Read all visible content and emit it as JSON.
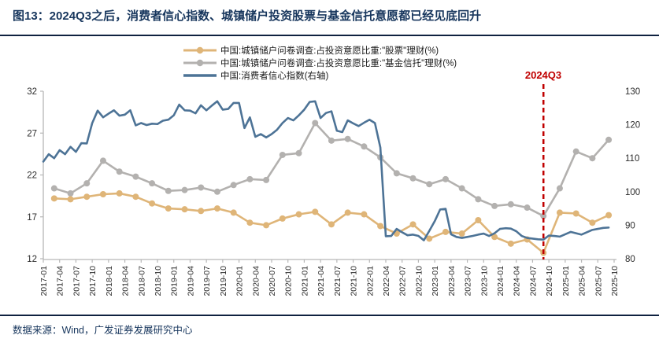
{
  "title": "图13：2024Q3之后，消费者信心指数、城镇储户投资股票与基金信托意愿都已经见底回升",
  "source_text": "数据来源：Wind，广发证券发展研究中心",
  "colors": {
    "title_text": "#17365d",
    "stocks_line": "#dfb578",
    "fund_trust_line": "#b3b1af",
    "cci_line": "#4d7396",
    "annotation_red": "#c00000",
    "axis_line": "#b7b7b7",
    "tick_text": "#2b2b2b"
  },
  "chart_data": {
    "type": "line",
    "title": "图13：2024Q3之后，消费者信心指数、城镇储户投资股票与基金信托意愿都已经见底回升",
    "x_axis": {
      "start_month": "2017-01",
      "end_month": "2025-10",
      "tick_frequency": "quarterly",
      "tick_labels": [
        "2017-01",
        "2017-04",
        "2017-07",
        "2017-10",
        "2018-01",
        "2018-04",
        "2018-07",
        "2018-10",
        "2019-01",
        "2019-04",
        "2019-07",
        "2019-10",
        "2020-01",
        "2020-04",
        "2020-07",
        "2020-10",
        "2021-01",
        "2021-04",
        "2021-07",
        "2021-10",
        "2022-01",
        "2022-04",
        "2022-07",
        "2022-10",
        "2023-01",
        "2023-04",
        "2023-07",
        "2023-10",
        "2024-01",
        "2024-04",
        "2024-07",
        "2024-10",
        "2025-01",
        "2025-04",
        "2025-07",
        "2025-10"
      ]
    },
    "left_axis": {
      "min": 12,
      "max": 32,
      "ticks": [
        12,
        17,
        22,
        27,
        32
      ]
    },
    "right_axis": {
      "min": 80,
      "max": 130,
      "ticks": [
        80,
        90,
        100,
        110,
        120,
        130
      ]
    },
    "grid": false,
    "legend_position": "top",
    "annotation": {
      "text": "2024Q3",
      "at_month": "2024-09",
      "style": "dashed-vertical-line"
    },
    "series": [
      {
        "name": "中国:城镇储户问卷调查:占投资意愿比重:\"股票\"理财(%)",
        "axis": "left",
        "frequency": "quarterly",
        "first_point_month": "2017-03",
        "color": "#dfb578",
        "markers": true,
        "values": [
          19.2,
          19.1,
          19.4,
          19.7,
          19.8,
          19.4,
          18.6,
          18.0,
          17.9,
          17.7,
          18.0,
          17.5,
          16.3,
          16.0,
          16.8,
          17.3,
          17.6,
          16.1,
          17.5,
          17.3,
          15.9,
          15.0,
          16.1,
          14.4,
          15.2,
          15.0,
          16.6,
          14.6,
          13.8,
          14.3,
          12.7,
          17.5,
          17.4,
          16.3,
          17.2
        ]
      },
      {
        "name": "中国:城镇储户问卷调查:占投资意愿比重:\"基金信托\"理财(%)",
        "axis": "left",
        "frequency": "quarterly",
        "first_point_month": "2017-03",
        "color": "#b3b1af",
        "markers": true,
        "values": [
          20.4,
          19.8,
          21.0,
          23.7,
          22.4,
          21.8,
          21.0,
          20.1,
          20.2,
          20.5,
          20.0,
          20.8,
          21.5,
          21.4,
          24.4,
          24.6,
          28.2,
          26.1,
          26.3,
          25.4,
          24.1,
          22.2,
          21.6,
          20.9,
          21.5,
          20.4,
          19.1,
          18.3,
          18.5,
          18.1,
          17.1,
          20.4,
          24.8,
          24.0,
          26.2
        ]
      },
      {
        "name": "中国:消费者信心指数(右轴)",
        "axis": "right",
        "frequency": "monthly",
        "first_point_month": "2017-01",
        "color": "#4d7396",
        "markers": false,
        "values": [
          109.0,
          111.2,
          110.0,
          112.4,
          111.2,
          113.4,
          111.9,
          114.5,
          114.4,
          120.5,
          124.2,
          122.2,
          123.3,
          124.3,
          122.7,
          123.0,
          124.3,
          119.8,
          120.5,
          119.9,
          120.3,
          120.2,
          121.2,
          121.5,
          122.8,
          126.0,
          124.3,
          124.2,
          123.4,
          125.8,
          124.3,
          125.7,
          127.0,
          124.5,
          124.7,
          126.5,
          126.5,
          119.0,
          122.2,
          116.4,
          117.2,
          116.2,
          117.2,
          118.5,
          120.5,
          122.0,
          121.3,
          122.8,
          124.5,
          126.8,
          127.0,
          122.0,
          123.5,
          124.0,
          118.2,
          117.8,
          121.3,
          120.4,
          119.6,
          120.6,
          121.5,
          120.5,
          113.2,
          86.7,
          86.8,
          88.9,
          87.9,
          87.0,
          87.2,
          86.8,
          85.5,
          88.3,
          91.2,
          94.7,
          94.9,
          87.3,
          86.5,
          86.2,
          86.5,
          86.8,
          87.2,
          87.5,
          86.8,
          87.6,
          88.9,
          89.1,
          89.0,
          88.2,
          86.8,
          86.2,
          86.0,
          85.8,
          85.7,
          86.9,
          86.8,
          86.6,
          87.3,
          88.0,
          87.6,
          87.2,
          87.9,
          88.6,
          88.9,
          89.2,
          89.3
        ]
      }
    ]
  }
}
